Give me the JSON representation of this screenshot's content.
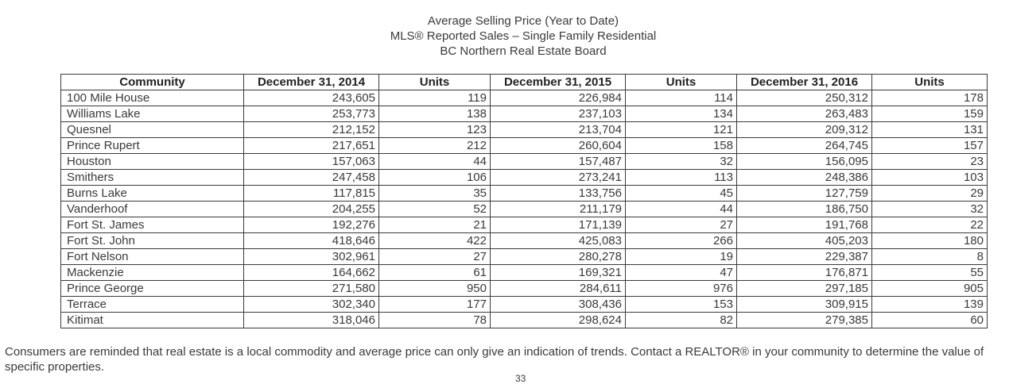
{
  "heading": {
    "line1": "Average Selling Price (Year to Date)",
    "line2": "MLS® Reported Sales – Single Family Residential",
    "line3": "BC Northern Real Estate Board"
  },
  "table": {
    "headers": [
      "Community",
      "December 31, 2014",
      "Units",
      "December 31, 2015",
      "Units",
      "December 31, 2016",
      "Units"
    ],
    "rows": [
      [
        "100 Mile House",
        "243,605",
        "119",
        "226,984",
        "114",
        "250,312",
        "178"
      ],
      [
        "Williams Lake",
        "253,773",
        "138",
        "237,103",
        "134",
        "263,483",
        "159"
      ],
      [
        "Quesnel",
        "212,152",
        "123",
        "213,704",
        "121",
        "209,312",
        "131"
      ],
      [
        "Prince Rupert",
        "217,651",
        "212",
        "260,604",
        "158",
        "264,745",
        "157"
      ],
      [
        "Houston",
        "157,063",
        "44",
        "157,487",
        "32",
        "156,095",
        "23"
      ],
      [
        "Smithers",
        "247,458",
        "106",
        "273,241",
        "113",
        "248,386",
        "103"
      ],
      [
        "Burns Lake",
        "117,815",
        "35",
        "133,756",
        "45",
        "127,759",
        "29"
      ],
      [
        "Vanderhoof",
        "204,255",
        "52",
        "211,179",
        "44",
        "186,750",
        "32"
      ],
      [
        "Fort St. James",
        "192,276",
        "21",
        "171,139",
        "27",
        "191,768",
        "22"
      ],
      [
        "Fort St. John",
        "418,646",
        "422",
        "425,083",
        "266",
        "405,203",
        "180"
      ],
      [
        "Fort Nelson",
        "302,961",
        "27",
        "280,278",
        "19",
        "229,387",
        "8"
      ],
      [
        "Mackenzie",
        "164,662",
        "61",
        "169,321",
        "47",
        "176,871",
        "55"
      ],
      [
        "Prince George",
        "271,580",
        "950",
        "284,611",
        "976",
        "297,185",
        "905"
      ],
      [
        "Terrace",
        "302,340",
        "177",
        "308,436",
        "153",
        "309,915",
        "139"
      ],
      [
        "Kitimat",
        "318,046",
        "78",
        "298,624",
        "82",
        "279,385",
        "60"
      ]
    ]
  },
  "footer": {
    "text": "Consumers are reminded that real estate is a local commodity and average price can only give an indication of trends. Contact a REALTOR® in your community to determine the value of specific properties."
  },
  "page_number": "33"
}
